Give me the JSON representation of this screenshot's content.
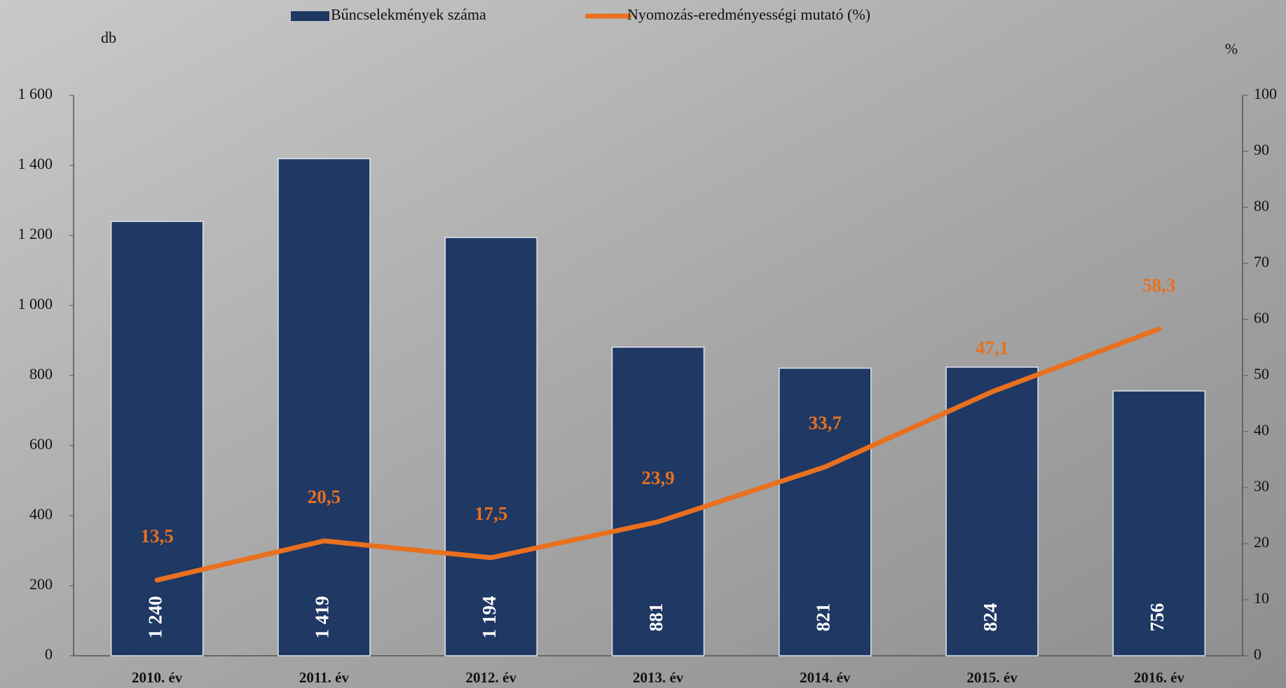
{
  "chart_data": {
    "type": "bar",
    "categories": [
      "2010. év",
      "2011. év",
      "2012. év",
      "2013. év",
      "2014. év",
      "2015. év",
      "2016. év"
    ],
    "y_label": "db",
    "y2_label": "%",
    "ylim": [
      0,
      1600
    ],
    "yticks": [
      0,
      200,
      400,
      600,
      800,
      {
        "value": 1000,
        "label": "1 000"
      },
      {
        "value": 1200,
        "label": "1 200"
      },
      {
        "value": 1400,
        "label": "1 400"
      },
      {
        "value": 1600,
        "label": "1 600"
      }
    ],
    "y2lim": [
      0,
      100
    ],
    "y2ticks": [
      0,
      10,
      20,
      30,
      40,
      50,
      60,
      70,
      80,
      90,
      100
    ],
    "series": [
      {
        "name": "Bűncselekmények száma",
        "type": "bar",
        "color": "#1f3864",
        "values": [
          1240,
          1419,
          1194,
          881,
          821,
          824,
          756
        ],
        "value_labels": [
          "1 240",
          "1 419",
          "1 194",
          "881",
          "821",
          "824",
          "756"
        ]
      },
      {
        "name": "Nyomozás-eredményességi mutató (%)",
        "type": "line",
        "axis": "y2",
        "color": "#e8701f",
        "values": [
          13.5,
          20.5,
          17.5,
          23.9,
          33.7,
          47.1,
          58.3
        ],
        "value_labels": [
          "13,5",
          "20,5",
          "17,5",
          "23,9",
          "33,7",
          "47,1",
          "58,3"
        ]
      }
    ]
  }
}
